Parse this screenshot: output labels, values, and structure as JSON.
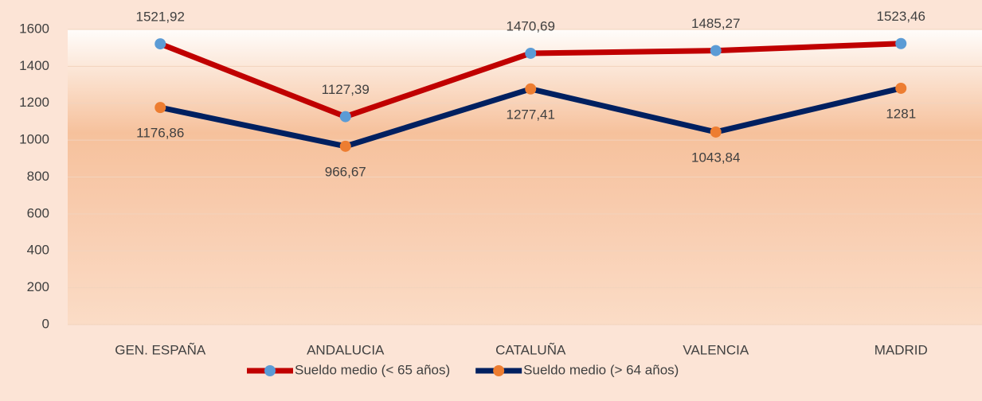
{
  "chart_data": {
    "type": "line",
    "categories": [
      "GEN. ESPAÑA",
      "ANDALUCIA",
      "CATALUÑA",
      "VALENCIA",
      "MADRID"
    ],
    "series": [
      {
        "name": "Sueldo medio (< 65 años)",
        "color": "#c00000",
        "marker_color": "#5b9bd5",
        "values": [
          1521.92,
          1127.39,
          1470.69,
          1485.27,
          1523.46
        ],
        "value_labels": [
          "1521,92",
          "1127,39",
          "1470,69",
          "1485,27",
          "1523,46"
        ]
      },
      {
        "name": "Sueldo medio (> 64 años)",
        "color": "#002060",
        "marker_color": "#ed7d31",
        "values": [
          1176.86,
          966.67,
          1277.41,
          1043.84,
          1281
        ],
        "value_labels": [
          "1176,86",
          "966,67",
          "1277,41",
          "1043,84",
          "1281"
        ]
      }
    ],
    "ylim": [
      0,
      1600
    ],
    "yticks": [
      0,
      200,
      400,
      600,
      800,
      1000,
      1200,
      1400,
      1600
    ],
    "grid": true,
    "legend": "bottom"
  }
}
